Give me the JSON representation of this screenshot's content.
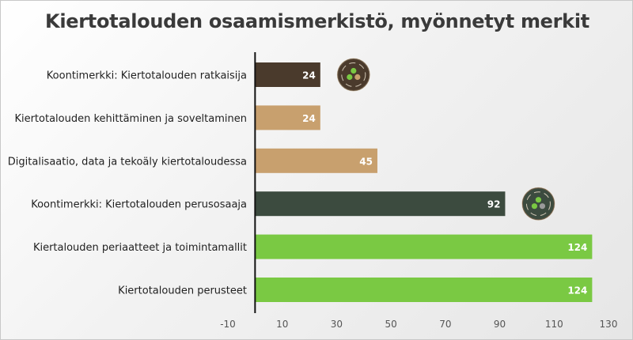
{
  "chart_data": {
    "type": "bar",
    "orientation": "horizontal",
    "title": "Kiertotalouden osaamismerkistö, myönnetyt merkit",
    "categories": [
      "Koontimerkki: Kiertotalouden ratkaisija",
      "Kiertotalouden kehittäminen ja soveltaminen",
      "Digitalisaatio, data ja tekoäly kiertotaloudessa",
      "Koontimerkki: Kiertotalouden perusosaaja",
      "Kiertalouden periaatteet ja toimintamallit",
      "Kiertotalouden perusteet"
    ],
    "values": [
      24,
      24,
      45,
      92,
      124,
      124
    ],
    "bar_colors": [
      "#4a3a2c",
      "#c8a06e",
      "#c8a06e",
      "#3c4b3f",
      "#7ac943",
      "#7ac943"
    ],
    "data_labels": [
      "24",
      "24",
      "45",
      "92",
      "124",
      "124"
    ],
    "xlim": [
      -10,
      130
    ],
    "xticks": [
      "-10",
      "10",
      "30",
      "50",
      "70",
      "90",
      "110",
      "130"
    ],
    "badges": [
      {
        "category_index": 0,
        "icon": "badge-ratkaisija-icon"
      },
      {
        "category_index": 3,
        "icon": "badge-perusosaaja-icon"
      }
    ],
    "grid": false,
    "legend": "none",
    "xlabel": "",
    "ylabel": ""
  }
}
